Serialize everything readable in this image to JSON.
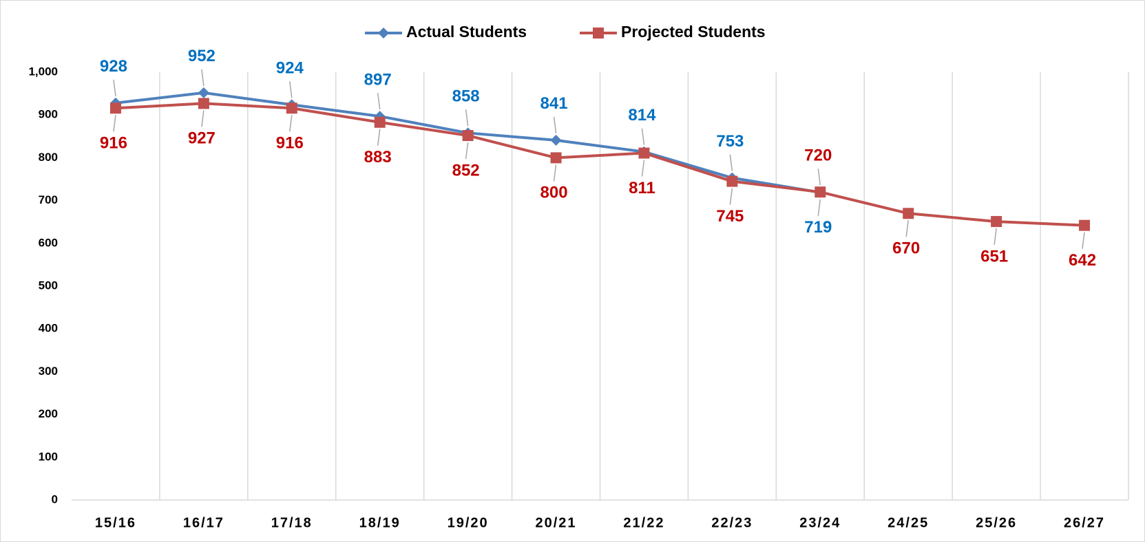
{
  "chart_data": {
    "type": "line",
    "categories": [
      "15/16",
      "16/17",
      "17/18",
      "18/19",
      "19/20",
      "20/21",
      "21/22",
      "22/23",
      "23/24",
      "24/25",
      "25/26",
      "26/27"
    ],
    "series": [
      {
        "name": "Actual Students",
        "color": "#4f81bd",
        "label_color": "#0070c0",
        "marker": "diamond",
        "values": [
          928,
          952,
          924,
          897,
          858,
          841,
          814,
          753,
          719,
          null,
          null,
          null
        ]
      },
      {
        "name": "Projected Students",
        "color": "#c0504d",
        "label_color": "#c00000",
        "marker": "square",
        "values": [
          916,
          927,
          916,
          883,
          852,
          800,
          811,
          745,
          720,
          670,
          651,
          642
        ]
      }
    ],
    "ylim": [
      0,
      1000
    ],
    "yticks": [
      0,
      100,
      200,
      300,
      400,
      500,
      600,
      700,
      800,
      900,
      {
        "value": 1000,
        "label": "1,000"
      }
    ],
    "grid": "x",
    "legend": "top"
  }
}
